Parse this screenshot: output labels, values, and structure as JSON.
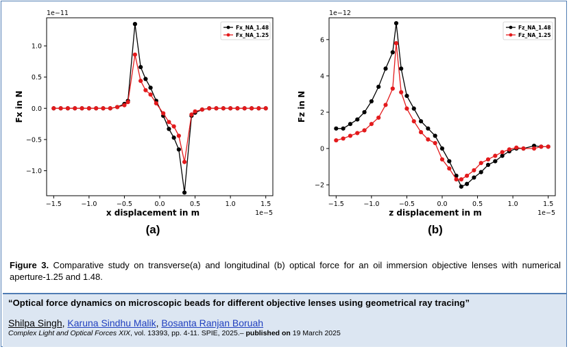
{
  "chart_data": [
    {
      "type": "line",
      "panel_label": "(a)",
      "xlabel": "x displacement in m",
      "ylabel": "Fx in N",
      "x_scale_text": "1e−5",
      "y_scale_text": "1e−11",
      "xlim": [
        -1.6,
        1.6
      ],
      "ylim": [
        -1.4,
        1.45
      ],
      "xticks": [
        -1.5,
        -1.0,
        -0.5,
        0.0,
        0.5,
        1.0,
        1.5
      ],
      "xtick_labels": [
        "−1.5",
        "−1.0",
        "−0.5",
        "0.0",
        "0.5",
        "1.0",
        "1.5"
      ],
      "yticks": [
        1.0,
        0.5,
        0.0,
        -0.5,
        -1.0
      ],
      "ytick_labels": [
        "1.0",
        "0.5",
        "0.0",
        "−0.5",
        "−1.0"
      ],
      "legend_position": "upper-right",
      "x": [
        -1.5,
        -1.4,
        -1.3,
        -1.2,
        -1.1,
        -1.0,
        -0.9,
        -0.8,
        -0.7,
        -0.6,
        -0.5,
        -0.45,
        -0.35,
        -0.27,
        -0.2,
        -0.13,
        -0.05,
        0.05,
        0.13,
        0.2,
        0.27,
        0.35,
        0.45,
        0.5,
        0.6,
        0.7,
        0.8,
        0.9,
        1.0,
        1.1,
        1.2,
        1.3,
        1.4,
        1.5
      ],
      "series": [
        {
          "name": "Fx_NA_1.48",
          "color": "#000000",
          "values": [
            0.0,
            0.0,
            0.0,
            0.0,
            0.0,
            0.0,
            0.0,
            0.0,
            0.0,
            0.02,
            0.07,
            0.12,
            1.35,
            0.66,
            0.47,
            0.33,
            0.12,
            -0.12,
            -0.33,
            -0.47,
            -0.66,
            -1.35,
            -0.12,
            -0.07,
            -0.02,
            0.0,
            0.0,
            0.0,
            0.0,
            0.0,
            0.0,
            0.0,
            0.0,
            0.0
          ]
        },
        {
          "name": "Fx_NA_1.25",
          "color": "#e31a1c",
          "values": [
            0.0,
            0.0,
            0.0,
            0.0,
            0.0,
            0.0,
            0.0,
            0.0,
            0.0,
            0.02,
            0.05,
            0.1,
            0.86,
            0.44,
            0.29,
            0.22,
            0.08,
            -0.08,
            -0.22,
            -0.29,
            -0.44,
            -0.86,
            -0.1,
            -0.05,
            -0.02,
            0.0,
            0.0,
            0.0,
            0.0,
            0.0,
            0.0,
            0.0,
            0.0,
            0.0
          ]
        }
      ]
    },
    {
      "type": "line",
      "panel_label": "(b)",
      "xlabel": "z displacement in m",
      "ylabel": "Fz in N",
      "x_scale_text": "1e−5",
      "y_scale_text": "1e−12",
      "xlim": [
        -1.6,
        1.6
      ],
      "ylim": [
        -2.6,
        7.2
      ],
      "xticks": [
        -1.5,
        -1.0,
        -0.5,
        0.0,
        0.5,
        1.0,
        1.5
      ],
      "xtick_labels": [
        "−1.5",
        "−1.0",
        "−0.5",
        "0.0",
        "0.5",
        "1.0",
        "1.5"
      ],
      "yticks": [
        6,
        4,
        2,
        0,
        -2
      ],
      "ytick_labels": [
        "6",
        "4",
        "2",
        "0",
        "−2"
      ],
      "legend_position": "upper-right",
      "x": [
        -1.5,
        -1.4,
        -1.3,
        -1.2,
        -1.1,
        -1.0,
        -0.9,
        -0.8,
        -0.7,
        -0.65,
        -0.58,
        -0.5,
        -0.4,
        -0.3,
        -0.2,
        -0.1,
        0.0,
        0.1,
        0.2,
        0.27,
        0.35,
        0.45,
        0.55,
        0.65,
        0.75,
        0.85,
        0.95,
        1.05,
        1.15,
        1.3,
        1.4,
        1.5
      ],
      "series": [
        {
          "name": "Fz_NA_1.48",
          "color": "#000000",
          "values": [
            1.1,
            1.1,
            1.35,
            1.6,
            2.0,
            2.6,
            3.4,
            4.4,
            5.3,
            6.9,
            4.4,
            2.9,
            2.2,
            1.5,
            1.1,
            0.7,
            0.0,
            -0.7,
            -1.5,
            -2.1,
            -1.95,
            -1.6,
            -1.3,
            -0.9,
            -0.7,
            -0.4,
            -0.15,
            0.0,
            0.0,
            0.15,
            0.1,
            0.1
          ]
        },
        {
          "name": "Fz_NA_1.25",
          "color": "#e31a1c",
          "values": [
            0.45,
            0.55,
            0.7,
            0.85,
            1.0,
            1.35,
            1.7,
            2.4,
            3.3,
            5.8,
            3.1,
            2.2,
            1.5,
            0.9,
            0.5,
            0.3,
            -0.6,
            -1.1,
            -1.7,
            -1.7,
            -1.5,
            -1.2,
            -0.8,
            -0.6,
            -0.4,
            -0.2,
            -0.05,
            0.05,
            0.0,
            0.0,
            0.1,
            0.1
          ]
        }
      ]
    }
  ],
  "caption": {
    "label": "Figure 3.",
    "text": " Comparative study on transverse(a) and longitudinal (b) optical force for an oil immersion objective lenses with numerical aperture-1.25 and 1.48."
  },
  "citation": {
    "title": "“Optical force dynamics on microscopic beads for different objective lenses using geometrical ray tracing”",
    "author_first": "Shilpa Singh",
    "author_sep1": ", ",
    "author_second": "Karuna Sindhu Malik",
    "author_sep2": ", ",
    "author_third": "Bosanta Ranjan Boruah",
    "venue": "Complex Light and Optical Forces XIX",
    "details": ", vol. 13393, pp. 4-11. SPIE, 2025.–",
    "published_label": " published on",
    "published_date": " 19 March 2025"
  }
}
